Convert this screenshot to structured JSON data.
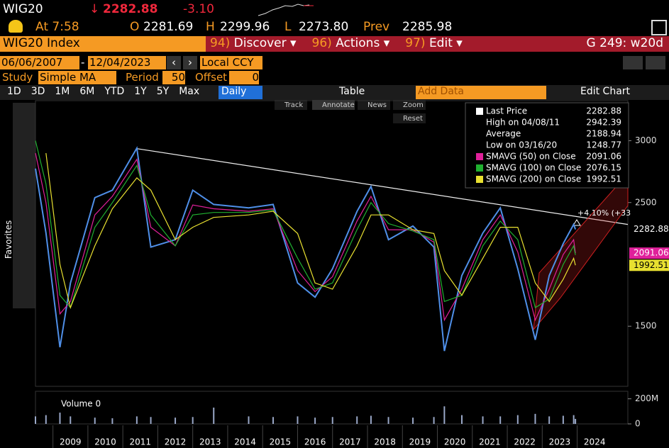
{
  "header": {
    "ticker": "WIG20",
    "arrow": "↓",
    "last": "2282.88",
    "change": "-3.10",
    "time": "At 7:58",
    "open_label": "O",
    "open": "2281.69",
    "high_label": "H",
    "high": "2299.96",
    "low_label": "L",
    "low": "2273.80",
    "prev_label": "Prev",
    "prev": "2285.98"
  },
  "menu": {
    "security": "WIG20 Index",
    "items": [
      {
        "num": "94)",
        "label": "Discover"
      },
      {
        "num": "96)",
        "label": "Actions"
      },
      {
        "num": "97)",
        "label": "Edit"
      }
    ],
    "page": "G 249: w20d"
  },
  "range": {
    "start": "06/06/2007",
    "dash": "-",
    "end": "12/04/2023",
    "currency": "Local CCY"
  },
  "study": {
    "label": "Study",
    "type": "Simple MA",
    "period_label": "Period",
    "period": "50",
    "offset_label": "Offset",
    "offset": "0"
  },
  "tabs": {
    "periods": [
      "1D",
      "3D",
      "1M",
      "6M",
      "YTD",
      "1Y",
      "5Y",
      "Max"
    ],
    "frequency": "Daily",
    "table": "Table",
    "add_data": "Add Data",
    "edit": "Edit Chart"
  },
  "tools": {
    "items": [
      "Track",
      "Annotate",
      "News",
      "Zoom",
      "Reset"
    ],
    "favorites": "Favorites"
  },
  "legend": [
    {
      "label": "Last Price",
      "value": "2282.88"
    },
    {
      "label": "High on 04/08/11",
      "value": "2942.39"
    },
    {
      "label": "Average",
      "value": "2188.94"
    },
    {
      "label": "Low on 03/16/20",
      "value": "1248.77"
    },
    {
      "label": "SMAVG (50)  on Close",
      "value": "2091.06"
    },
    {
      "label": "SMAVG (100)  on Close",
      "value": "2076.15"
    },
    {
      "label": "SMAVG (200)  on Close",
      "value": "1992.51"
    }
  ],
  "chart_data": {
    "type": "line",
    "x": [
      2008.5,
      2008.8,
      2009.2,
      2009.5,
      2010.2,
      2010.7,
      2011.4,
      2011.8,
      2012.5,
      2013.0,
      2013.6,
      2014.6,
      2015.3,
      2016.0,
      2016.5,
      2017.0,
      2017.7,
      2018.1,
      2018.6,
      2019.3,
      2019.9,
      2020.2,
      2020.7,
      2021.3,
      2021.8,
      2022.3,
      2022.8,
      2023.2,
      2023.6,
      2023.9,
      2023.95
    ],
    "series": [
      {
        "name": "Last Price",
        "color": "#4f8fe8",
        "values": [
          2775,
          2254,
          1330,
          1850,
          2540,
          2600,
          2940,
          2140,
          2200,
          2600,
          2485,
          2457,
          2485,
          1850,
          1735,
          1965,
          2428,
          2630,
          2200,
          2310,
          2140,
          1300,
          1910,
          2254,
          2457,
          1965,
          1390,
          1910,
          2168,
          2323,
          2283
        ]
      },
      {
        "name": "SMAVG (50)",
        "color": "#e0209a",
        "values": [
          2900,
          2500,
          1600,
          1700,
          2400,
          2550,
          2850,
          2300,
          2150,
          2480,
          2450,
          2430,
          2450,
          1950,
          1780,
          1900,
          2350,
          2550,
          2280,
          2280,
          2180,
          1550,
          1800,
          2200,
          2400,
          2100,
          1550,
          1800,
          2080,
          2200,
          2091
        ]
      },
      {
        "name": "SMAVG (100)",
        "color": "#20b030",
        "values": [
          3000,
          2650,
          1750,
          1650,
          2300,
          2500,
          2800,
          2400,
          2150,
          2400,
          2420,
          2420,
          2440,
          2050,
          1800,
          1850,
          2280,
          2500,
          2330,
          2270,
          2200,
          1700,
          1750,
          2150,
          2350,
          2200,
          1650,
          1720,
          2000,
          2150,
          2076
        ]
      },
      {
        "name": "SMAVG (200)",
        "color": "#e8e030",
        "values": [
          null,
          2900,
          2000,
          1650,
          2150,
          2450,
          2700,
          2600,
          2200,
          2300,
          2380,
          2400,
          2430,
          2250,
          1850,
          1800,
          2150,
          2400,
          2400,
          2280,
          2250,
          1950,
          1750,
          2050,
          2300,
          2300,
          1850,
          1700,
          1880,
          2050,
          1993
        ]
      }
    ],
    "volume": {
      "label": "Volume 0",
      "values": [
        60,
        70,
        90,
        60,
        50,
        45,
        60,
        55,
        50,
        55,
        130,
        60,
        55,
        60,
        50,
        55,
        60,
        65,
        55,
        50,
        55,
        140,
        70,
        60,
        60,
        70,
        80,
        60,
        65,
        70,
        40
      ],
      "ylim": [
        0,
        260
      ],
      "yticks": [
        {
          "value": 200,
          "label": "200M"
        },
        0
      ]
    },
    "trendline": {
      "x": [
        2011.4,
        2025.45
      ],
      "values": [
        2936,
        2323
      ],
      "annotation": "+4.10% (+33"
    },
    "xlim": [
      2008.5,
      2025.45
    ],
    "xticks": [
      2009,
      2010,
      2011,
      2012,
      2013,
      2014,
      2015,
      2016,
      2017,
      2018,
      2019,
      2020,
      2021,
      2022,
      2023,
      2024
    ],
    "ylim": [
      1014,
      3324
    ],
    "yticks": [
      1500,
      2500,
      3000
    ],
    "grid": false
  }
}
